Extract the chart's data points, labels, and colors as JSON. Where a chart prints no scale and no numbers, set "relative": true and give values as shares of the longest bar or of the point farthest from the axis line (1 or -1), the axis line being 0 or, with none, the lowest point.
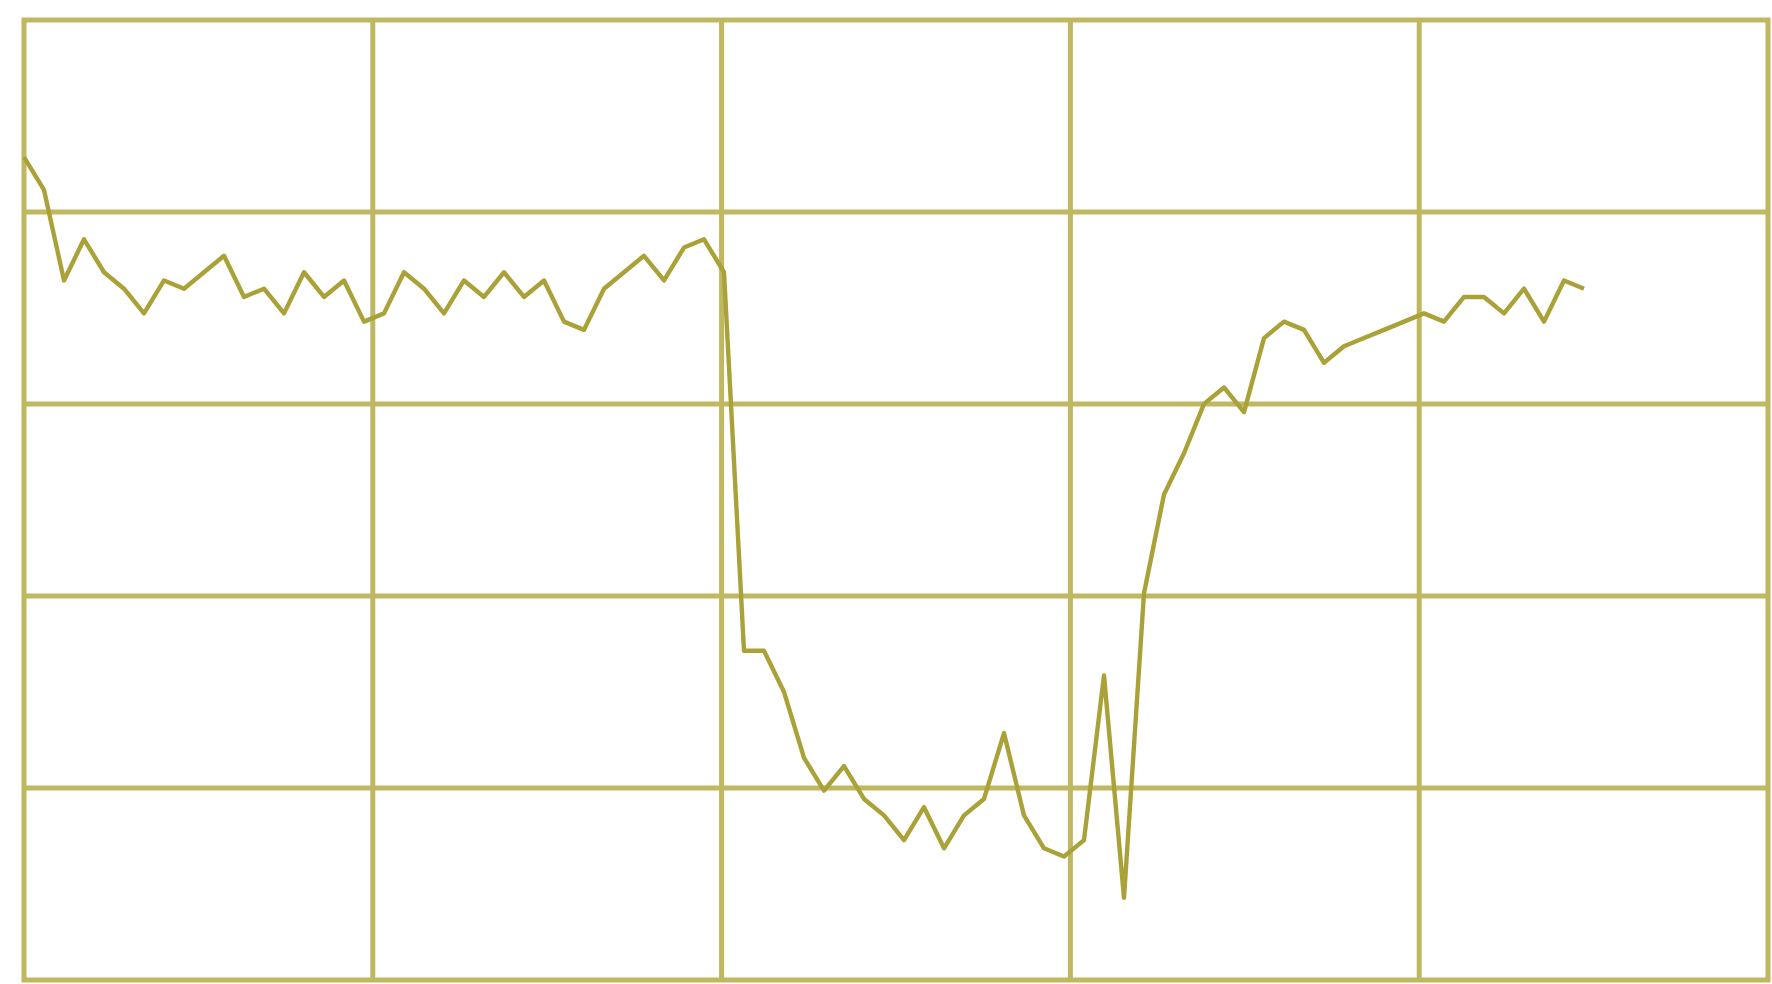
{
  "chart_data": {
    "type": "line",
    "relative": true,
    "grid": true,
    "legend": false,
    "marker": "none",
    "line_style": "solid",
    "categories": [
      null,
      null,
      null,
      null,
      null,
      null,
      null,
      null,
      null,
      null,
      null,
      null,
      null,
      null,
      null,
      null,
      null,
      null,
      null,
      null,
      null,
      null,
      null,
      null,
      null,
      null,
      null,
      null,
      null,
      null,
      null,
      null,
      null,
      null,
      null,
      null,
      null,
      null,
      null,
      null,
      null,
      null,
      null,
      null,
      null,
      null,
      null,
      null,
      null,
      null,
      null,
      null,
      null,
      null,
      null,
      null,
      null,
      null,
      null,
      null,
      null,
      null,
      null,
      null,
      null,
      null,
      null,
      null,
      null,
      null,
      null,
      null,
      null,
      null,
      null,
      null,
      null,
      null,
      null
    ],
    "series": [
      {
        "color": "#aaa238",
        "values": [
          1.0,
          0.96,
          0.85,
          0.9,
          0.86,
          0.84,
          0.81,
          0.85,
          0.84,
          0.86,
          0.88,
          0.83,
          0.84,
          0.81,
          0.86,
          0.83,
          0.85,
          0.8,
          0.81,
          0.86,
          0.84,
          0.81,
          0.85,
          0.83,
          0.86,
          0.83,
          0.85,
          0.8,
          0.79,
          0.84,
          0.86,
          0.88,
          0.85,
          0.89,
          0.9,
          0.86,
          0.4,
          0.4,
          0.35,
          0.27,
          0.23,
          0.26,
          0.22,
          0.2,
          0.17,
          0.21,
          0.16,
          0.2,
          0.22,
          0.3,
          0.2,
          0.16,
          0.15,
          0.17,
          0.37,
          0.1,
          0.47,
          0.59,
          0.64,
          0.7,
          0.72,
          0.69,
          0.78,
          0.8,
          0.79,
          0.75,
          0.77,
          0.78,
          0.79,
          0.8,
          0.81,
          0.8,
          0.83,
          0.83,
          0.81,
          0.84,
          0.8,
          0.85,
          0.84
        ]
      }
    ]
  }
}
